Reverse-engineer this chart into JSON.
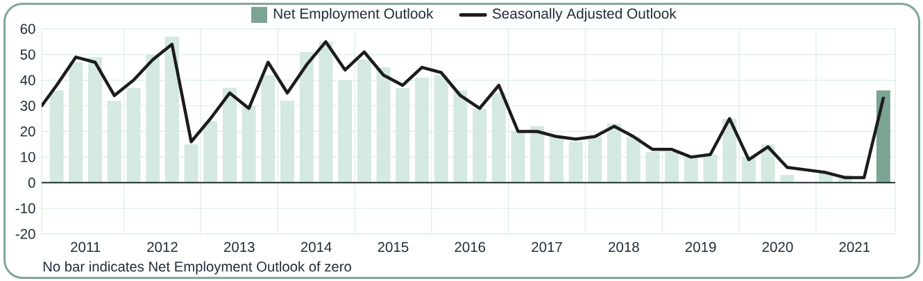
{
  "chart_data": {
    "type": "bar",
    "x": [
      2011.125,
      2011.375,
      2011.625,
      2011.875,
      2012.125,
      2012.375,
      2012.625,
      2012.875,
      2013.125,
      2013.375,
      2013.625,
      2013.875,
      2014.125,
      2014.375,
      2014.625,
      2014.875,
      2015.125,
      2015.375,
      2015.625,
      2015.875,
      2016.125,
      2016.375,
      2016.625,
      2016.875,
      2017.125,
      2017.375,
      2017.625,
      2017.875,
      2018.125,
      2018.375,
      2018.625,
      2018.875,
      2019.125,
      2019.375,
      2019.625,
      2019.875,
      2020.125,
      2020.375,
      2020.625,
      2020.875,
      2021.125,
      2021.375,
      2021.625,
      2021.875
    ],
    "series": [
      {
        "name": "Net Employment Outlook",
        "color": "#7ca493",
        "colors": [
          "#d4e9e0",
          "#d4e9e0",
          "#d4e9e0",
          "#d4e9e0",
          "#d4e9e0",
          "#d4e9e0",
          "#d4e9e0",
          "#d4e9e0",
          "#d4e9e0",
          "#d4e9e0",
          "#d4e9e0",
          "#d4e9e0",
          "#d4e9e0",
          "#d4e9e0",
          "#d4e9e0",
          "#d4e9e0",
          "#d4e9e0",
          "#d4e9e0",
          "#d4e9e0",
          "#d4e9e0",
          "#d4e9e0",
          "#d4e9e0",
          "#d4e9e0",
          "#d4e9e0",
          "#d4e9e0",
          "#d4e9e0",
          "#d4e9e0",
          "#d4e9e0",
          "#d4e9e0",
          "#d4e9e0",
          "#d4e9e0",
          "#d4e9e0",
          "#d4e9e0",
          "#d4e9e0",
          "#d4e9e0",
          "#d4e9e0",
          "#d4e9e0",
          "#d4e9e0",
          "#d4e9e0",
          "#d4e9e0",
          "#d4e9e0",
          "#d4e9e0",
          "#d4e9e0",
          "#7ca493"
        ],
        "values": [
          36,
          47,
          49,
          32,
          37,
          50,
          57,
          15,
          24,
          37,
          30,
          42,
          32,
          51,
          55,
          40,
          48,
          45,
          37,
          41,
          42,
          36,
          29,
          35,
          20,
          22,
          18,
          16,
          18,
          23,
          18,
          12,
          12,
          10,
          11,
          25,
          10,
          15,
          3,
          0,
          4,
          3,
          0,
          36
        ]
      },
      {
        "name": "Seasonally Adjusted Outlook",
        "type": "line",
        "color": "#1c1c1c",
        "x": [
          2010.93,
          2011.125,
          2011.375,
          2011.625,
          2011.875,
          2012.125,
          2012.375,
          2012.625,
          2012.875,
          2013.125,
          2013.375,
          2013.625,
          2013.875,
          2014.125,
          2014.375,
          2014.625,
          2014.875,
          2015.125,
          2015.375,
          2015.625,
          2015.875,
          2016.125,
          2016.375,
          2016.625,
          2016.875,
          2017.125,
          2017.375,
          2017.625,
          2017.875,
          2018.125,
          2018.375,
          2018.625,
          2018.875,
          2019.125,
          2019.375,
          2019.625,
          2019.875,
          2020.125,
          2020.375,
          2020.625,
          2020.875,
          2021.125,
          2021.375,
          2021.625,
          2021.875
        ],
        "values": [
          30,
          38,
          49,
          47,
          34,
          40,
          48,
          54,
          16,
          25,
          35,
          29,
          47,
          35,
          46,
          55,
          44,
          51,
          42,
          38,
          45,
          43,
          34,
          29,
          38,
          20,
          20,
          18,
          17,
          18,
          22,
          18,
          13,
          13,
          10,
          11,
          25,
          9,
          14,
          6,
          5,
          4,
          2,
          2,
          33
        ]
      }
    ],
    "xlim": [
      2010.93,
      2022.03
    ],
    "xticks": [
      {
        "value": 2011.5,
        "label": "2011"
      },
      {
        "value": 2012,
        "label": null
      },
      {
        "value": 2012.5,
        "label": "2012"
      },
      {
        "value": 2013,
        "label": null
      },
      {
        "value": 2013.5,
        "label": "2013"
      },
      {
        "value": 2014,
        "label": null
      },
      {
        "value": 2014.5,
        "label": "2014"
      },
      {
        "value": 2015,
        "label": null
      },
      {
        "value": 2015.5,
        "label": "2015"
      },
      {
        "value": 2016,
        "label": null
      },
      {
        "value": 2016.5,
        "label": "2016"
      },
      {
        "value": 2017,
        "label": null
      },
      {
        "value": 2017.5,
        "label": "2017"
      },
      {
        "value": 2018,
        "label": null
      },
      {
        "value": 2018.5,
        "label": "2018"
      },
      {
        "value": 2019,
        "label": null
      },
      {
        "value": 2019.5,
        "label": "2019"
      },
      {
        "value": 2020,
        "label": null
      },
      {
        "value": 2020.5,
        "label": "2020"
      },
      {
        "value": 2021,
        "label": null
      },
      {
        "value": 2021.5,
        "label": "2021"
      }
    ],
    "ylim": [
      -20,
      60
    ],
    "yticks": [
      -20,
      -10,
      0,
      10,
      20,
      30,
      40,
      50,
      60
    ],
    "grid": true,
    "legend": "top",
    "annotations": [
      "No bar indicates Net Employment Outlook of zero"
    ]
  }
}
